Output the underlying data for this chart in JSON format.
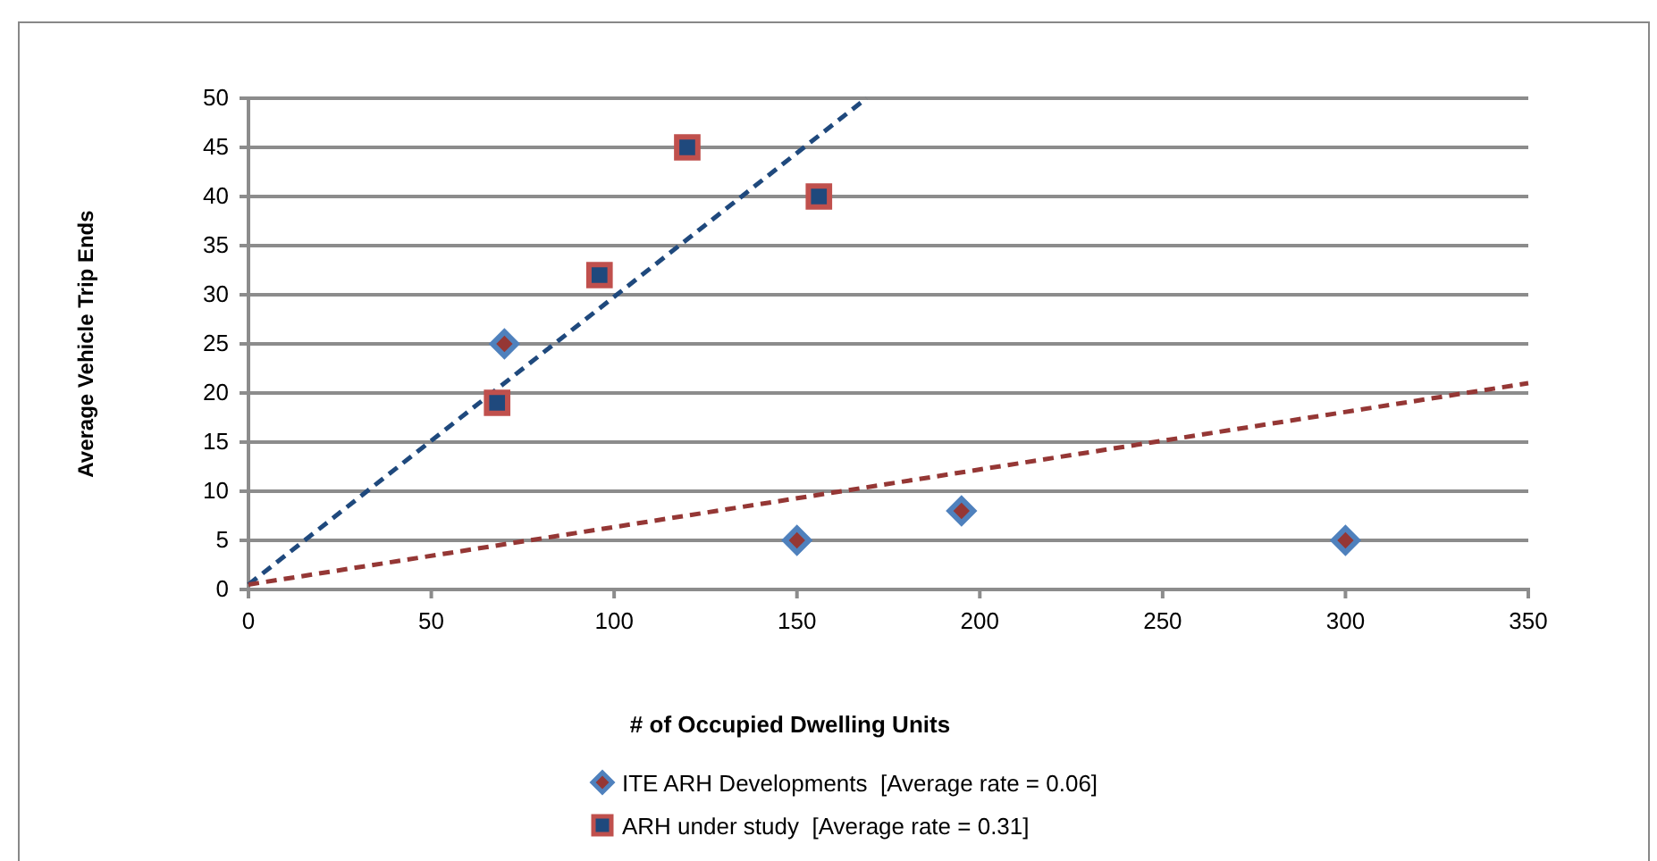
{
  "chart_data": {
    "type": "scatter",
    "xlabel": "# of Occupied  Dwelling Units",
    "ylabel": "Average Vehicle Trip Ends",
    "xlim": [
      0,
      350
    ],
    "xticks": [
      0,
      50,
      100,
      150,
      200,
      250,
      300,
      350
    ],
    "ylim": [
      0,
      50
    ],
    "yticks": [
      0,
      5,
      10,
      15,
      20,
      25,
      30,
      35,
      40,
      45,
      50
    ],
    "grid": "y",
    "legend": "bottom",
    "series": [
      {
        "name": "ITE ARH Developments  [Average rate = 0.06]",
        "marker": "diamond",
        "color": "#953735",
        "x": [
          70,
          150,
          195,
          300
        ],
        "values": [
          25,
          5,
          8,
          5
        ]
      },
      {
        "name": "ARH under study  [Average rate = 0.31]",
        "marker": "square",
        "color": "#1f497d",
        "x": [
          68,
          96,
          120,
          156
        ],
        "values": [
          19,
          32,
          45,
          40
        ]
      },
      {
        "type": "line",
        "line_style": "dashed",
        "marker": "none",
        "color": "#1f497d",
        "x": [
          0,
          169
        ],
        "values": [
          0.5,
          50
        ]
      },
      {
        "type": "line",
        "line_style": "dashed",
        "marker": "none",
        "color": "#953735",
        "x": [
          0,
          350
        ],
        "values": [
          0.5,
          21
        ]
      }
    ]
  }
}
